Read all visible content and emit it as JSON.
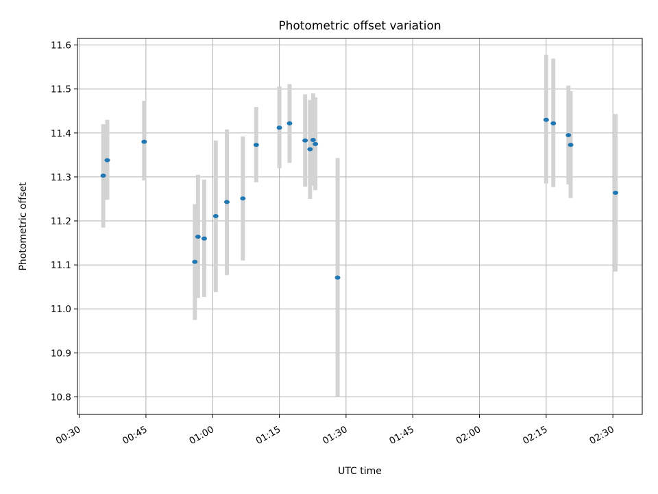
{
  "chart_data": {
    "type": "scatter",
    "title": "Photometric offset variation",
    "xlabel": "UTC time",
    "ylabel": "Photometric offset",
    "x_ticks": [
      "00:30",
      "00:45",
      "01:00",
      "01:15",
      "01:30",
      "01:45",
      "02:00",
      "02:15",
      "02:30"
    ],
    "x_range": [
      "00:29.6",
      "02:36.6"
    ],
    "ylim": [
      10.76,
      11.615
    ],
    "y_ticks": [
      10.8,
      10.9,
      11.0,
      11.1,
      11.2,
      11.3,
      11.4,
      11.5,
      11.6
    ],
    "grid": true,
    "error_bars": true,
    "points": [
      {
        "t": "00:35.4",
        "y": 11.303,
        "err_low": 11.185,
        "err_high": 11.42
      },
      {
        "t": "00:36.3",
        "y": 11.338,
        "err_low": 11.248,
        "err_high": 11.43
      },
      {
        "t": "00:44.6",
        "y": 11.38,
        "err_low": 11.292,
        "err_high": 11.473
      },
      {
        "t": "00:56.0",
        "y": 11.107,
        "err_low": 10.975,
        "err_high": 11.238
      },
      {
        "t": "00:56.7",
        "y": 11.164,
        "err_low": 11.025,
        "err_high": 11.305
      },
      {
        "t": "00:58.1",
        "y": 11.16,
        "err_low": 11.027,
        "err_high": 11.294
      },
      {
        "t": "01:00.7",
        "y": 11.211,
        "err_low": 11.038,
        "err_high": 11.383
      },
      {
        "t": "01:03.2",
        "y": 11.243,
        "err_low": 11.077,
        "err_high": 11.408
      },
      {
        "t": "01:06.8",
        "y": 11.251,
        "err_low": 11.11,
        "err_high": 11.392
      },
      {
        "t": "01:09.8",
        "y": 11.373,
        "err_low": 11.288,
        "err_high": 11.459
      },
      {
        "t": "01:15.0",
        "y": 11.412,
        "err_low": 11.32,
        "err_high": 11.506
      },
      {
        "t": "01:17.3",
        "y": 11.422,
        "err_low": 11.332,
        "err_high": 11.511
      },
      {
        "t": "01:20.8",
        "y": 11.383,
        "err_low": 11.278,
        "err_high": 11.488
      },
      {
        "t": "01:21.9",
        "y": 11.363,
        "err_low": 11.25,
        "err_high": 11.475
      },
      {
        "t": "01:22.6",
        "y": 11.384,
        "err_low": 11.28,
        "err_high": 11.49
      },
      {
        "t": "01:23.1",
        "y": 11.375,
        "err_low": 11.27,
        "err_high": 11.481
      },
      {
        "t": "01:28.1",
        "y": 11.071,
        "err_low": 10.8,
        "err_high": 11.343
      },
      {
        "t": "02:15.0",
        "y": 11.43,
        "err_low": 11.285,
        "err_high": 11.578
      },
      {
        "t": "02:16.6",
        "y": 11.422,
        "err_low": 11.277,
        "err_high": 11.569
      },
      {
        "t": "02:20.0",
        "y": 11.395,
        "err_low": 11.283,
        "err_high": 11.508
      },
      {
        "t": "02:20.5",
        "y": 11.373,
        "err_low": 11.252,
        "err_high": 11.495
      },
      {
        "t": "02:30.6",
        "y": 11.264,
        "err_low": 11.085,
        "err_high": 11.443
      }
    ]
  }
}
